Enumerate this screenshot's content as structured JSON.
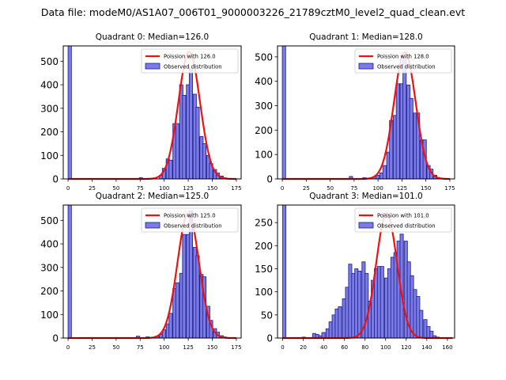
{
  "figure": {
    "suptitle": "Data file: modeM0/AS1A07_006T01_9000003226_21789cztM0_level2_quad_clean.evt"
  },
  "colors": {
    "bar_fill": "#7b7be6",
    "bar_edge": "#1c1c8a",
    "poisson_line": "#ee1111",
    "axis": "#000000"
  },
  "chart_data": [
    {
      "type": "bar",
      "title": "Quadrant 0: Median=126.0",
      "xlim": [
        -5,
        180
      ],
      "ylim": [
        0,
        565
      ],
      "xticks": [
        0,
        25,
        50,
        75,
        100,
        125,
        150,
        175
      ],
      "yticks": [
        0,
        100,
        200,
        300,
        400,
        500
      ],
      "bin_width": 3.5,
      "legend": {
        "line_label": "Poission with 126.0",
        "bar_label": "Observed distribution",
        "loc": "upper right"
      },
      "bins": [
        [
          0,
          565
        ],
        [
          74,
          5
        ],
        [
          95,
          15
        ],
        [
          98,
          45
        ],
        [
          102,
          85
        ],
        [
          105,
          80
        ],
        [
          109,
          235
        ],
        [
          112,
          235
        ],
        [
          116,
          400
        ],
        [
          119,
          355
        ],
        [
          123,
          400
        ],
        [
          126,
          470
        ],
        [
          130,
          360
        ],
        [
          133,
          305
        ],
        [
          137,
          180
        ],
        [
          140,
          150
        ],
        [
          144,
          100
        ],
        [
          147,
          65
        ],
        [
          151,
          40
        ],
        [
          154,
          25
        ],
        [
          158,
          12
        ],
        [
          161,
          5
        ],
        [
          165,
          2
        ]
      ],
      "poisson_mean": 126.0,
      "poisson_peak": 540
    },
    {
      "type": "bar",
      "title": "Quadrant 1: Median=128.0",
      "xlim": [
        -5,
        180
      ],
      "ylim": [
        0,
        545
      ],
      "xticks": [
        0,
        25,
        50,
        75,
        100,
        125,
        150,
        175
      ],
      "yticks": [
        0,
        100,
        200,
        300,
        400,
        500
      ],
      "bin_width": 3.5,
      "legend": {
        "line_label": "Poission with 128.0",
        "bar_label": "Observed distribution",
        "loc": "upper right"
      },
      "bins": [
        [
          0,
          545
        ],
        [
          70,
          10
        ],
        [
          84,
          5
        ],
        [
          95,
          10
        ],
        [
          98,
          15
        ],
        [
          102,
          25
        ],
        [
          105,
          55
        ],
        [
          109,
          110
        ],
        [
          112,
          240
        ],
        [
          116,
          260
        ],
        [
          119,
          390
        ],
        [
          123,
          390
        ],
        [
          126,
          500
        ],
        [
          130,
          385
        ],
        [
          133,
          330
        ],
        [
          137,
          270
        ],
        [
          140,
          270
        ],
        [
          144,
          160
        ],
        [
          147,
          160
        ],
        [
          151,
          55
        ],
        [
          154,
          40
        ],
        [
          158,
          15
        ],
        [
          161,
          6
        ],
        [
          165,
          2
        ]
      ],
      "poisson_mean": 128.0,
      "poisson_peak": 520
    },
    {
      "type": "bar",
      "title": "Quadrant 2: Median=125.0",
      "xlim": [
        -5,
        180
      ],
      "ylim": [
        0,
        565
      ],
      "xticks": [
        0,
        25,
        50,
        75,
        100,
        125,
        150,
        175
      ],
      "yticks": [
        0,
        100,
        200,
        300,
        400,
        500
      ],
      "bin_width": 3.5,
      "legend": {
        "line_label": "Poission with 125.0",
        "bar_label": "Observed distribution",
        "loc": "upper right"
      },
      "bins": [
        [
          0,
          565
        ],
        [
          71,
          8
        ],
        [
          81,
          5
        ],
        [
          91,
          8
        ],
        [
          95,
          15
        ],
        [
          98,
          35
        ],
        [
          102,
          60
        ],
        [
          105,
          105
        ],
        [
          109,
          210
        ],
        [
          112,
          235
        ],
        [
          116,
          275
        ],
        [
          119,
          440
        ],
        [
          123,
          440
        ],
        [
          126,
          540
        ],
        [
          130,
          385
        ],
        [
          133,
          350
        ],
        [
          137,
          270
        ],
        [
          140,
          260
        ],
        [
          144,
          135
        ],
        [
          147,
          75
        ],
        [
          151,
          40
        ],
        [
          154,
          25
        ],
        [
          158,
          10
        ],
        [
          161,
          5
        ],
        [
          165,
          2
        ]
      ],
      "poisson_mean": 125.0,
      "poisson_peak": 530
    },
    {
      "type": "bar",
      "title": "Quadrant 3: Median=101.0",
      "xlim": [
        -5,
        167
      ],
      "ylim": [
        0,
        288
      ],
      "xticks": [
        0,
        20,
        40,
        60,
        80,
        100,
        120,
        140,
        160
      ],
      "yticks": [
        0,
        50,
        100,
        150,
        200,
        250
      ],
      "bin_width": 3.2,
      "legend": {
        "line_label": "Poission with 101.0",
        "bar_label": "Observed distribution",
        "loc": "upper right"
      },
      "bins": [
        [
          0,
          288
        ],
        [
          19,
          2
        ],
        [
          29,
          10
        ],
        [
          32,
          8
        ],
        [
          35,
          5
        ],
        [
          38,
          12
        ],
        [
          42,
          20
        ],
        [
          45,
          35
        ],
        [
          48,
          50
        ],
        [
          51,
          63
        ],
        [
          54,
          68
        ],
        [
          58,
          85
        ],
        [
          61,
          110
        ],
        [
          64,
          160
        ],
        [
          67,
          140
        ],
        [
          70,
          150
        ],
        [
          73,
          145
        ],
        [
          77,
          165
        ],
        [
          80,
          140
        ],
        [
          83,
          80
        ],
        [
          86,
          125
        ],
        [
          89,
          150
        ],
        [
          92,
          155
        ],
        [
          95,
          155
        ],
        [
          99,
          130
        ],
        [
          102,
          150
        ],
        [
          105,
          175
        ],
        [
          108,
          185
        ],
        [
          111,
          210
        ],
        [
          114,
          225
        ],
        [
          118,
          210
        ],
        [
          121,
          165
        ],
        [
          124,
          135
        ],
        [
          127,
          105
        ],
        [
          130,
          90
        ],
        [
          133,
          60
        ],
        [
          137,
          40
        ],
        [
          140,
          25
        ],
        [
          143,
          15
        ],
        [
          146,
          5
        ],
        [
          149,
          2
        ]
      ],
      "poisson_mean": 101.0,
      "poisson_peak": 270
    }
  ]
}
